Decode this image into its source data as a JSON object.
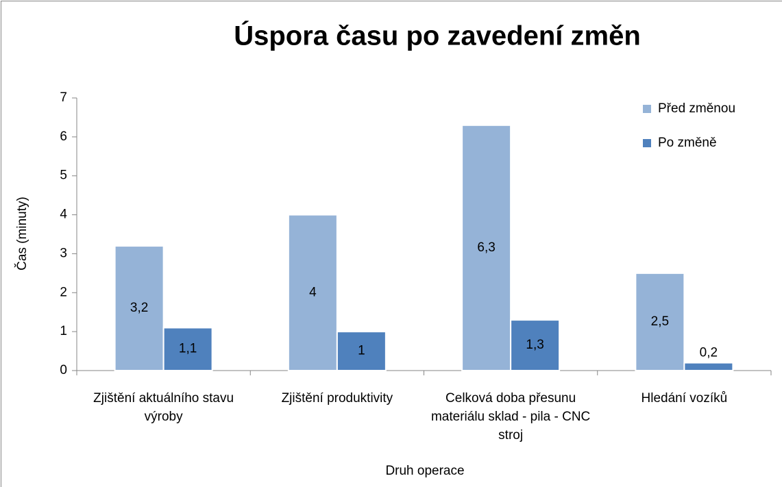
{
  "chart_data": {
    "type": "bar",
    "title": "Úspora času po zavedení změn",
    "x_label": "Druh operace",
    "y_label": "Čas (minuty)",
    "categories": [
      "Zjištění aktuálního stavu výroby",
      "Zjištění produktivity",
      "Celková doba přesunu materiálu sklad - pila - CNC stroj",
      "Hledání vozíků"
    ],
    "series": [
      {
        "name": "Před změnou",
        "color": "#95b3d7",
        "values": [
          3.2,
          4,
          6.3,
          2.5
        ],
        "value_labels": [
          "3,2",
          "4",
          "6,3",
          "2,5"
        ]
      },
      {
        "name": "Po změně",
        "color": "#4f81bd",
        "values": [
          1.1,
          1,
          1.3,
          0.2
        ],
        "value_labels": [
          "1,1",
          "1",
          "1,3",
          "0,2"
        ]
      }
    ],
    "ylim": [
      0,
      7
    ],
    "yticks": [
      0,
      1,
      2,
      3,
      4,
      5,
      6,
      7
    ],
    "legend": "top-right"
  }
}
